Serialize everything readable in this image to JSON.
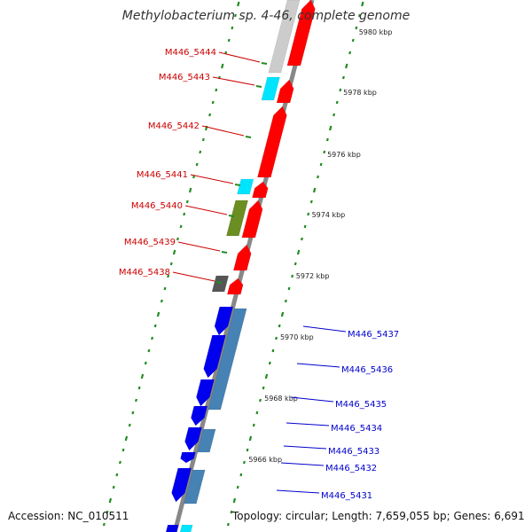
{
  "title": "Methylobacterium sp. 4-46, complete genome",
  "accession": "Accession: NC_010511",
  "topology": "Topology: circular; Length: 7,659,055 bp; Genes: 6,691",
  "colors": {
    "left_label": "#cc0000",
    "right_label": "#0000cc",
    "red": "#ff0000",
    "cyan": "#00e5ff",
    "olive": "#6b8e23",
    "gray_light": "#cccccc",
    "gray_dark": "#555555",
    "blue": "#0000ee",
    "steel": "#4682b4",
    "backbone": "#888888",
    "tick": "#228b22"
  },
  "kbp_markers": [
    "5980 kbp",
    "5978 kbp",
    "5976 kbp",
    "5974 kbp",
    "5972 kbp",
    "5970 kbp",
    "5968 kbp",
    "5966 kbp"
  ],
  "genes_left": [
    "M446_5444",
    "M446_5443",
    "M446_5442",
    "M446_5441",
    "M446_5440",
    "M446_5439",
    "M446_5438"
  ],
  "genes_right": [
    "M446_5437",
    "M446_5436",
    "M446_5435",
    "M446_5434",
    "M446_5433",
    "M446_5432",
    "M446_5431"
  ]
}
